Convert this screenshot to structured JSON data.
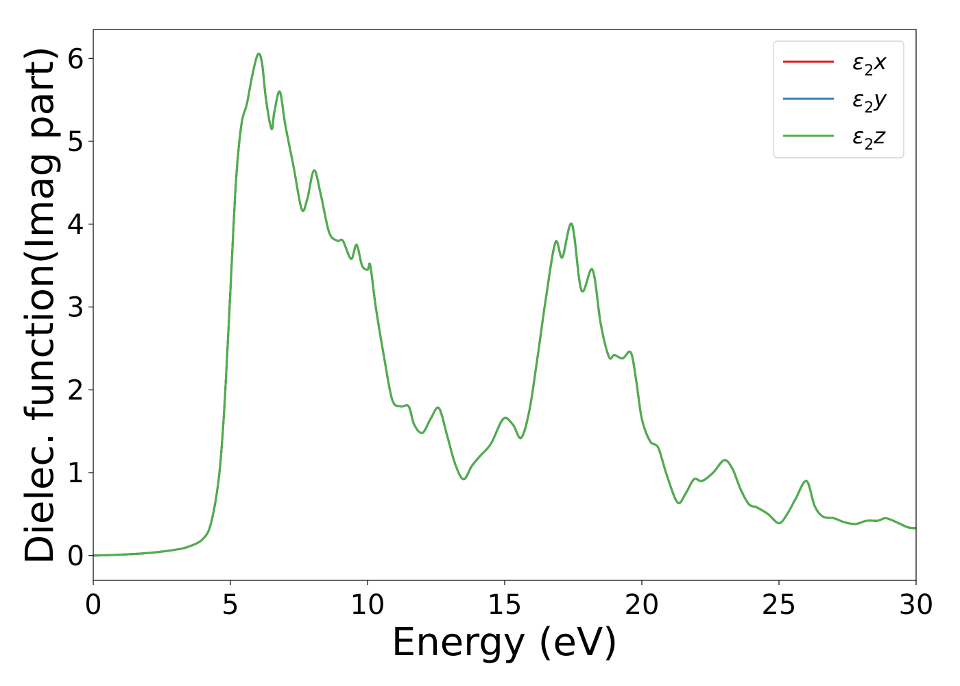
{
  "chart_data": {
    "type": "line",
    "xlabel": "Energy (eV)",
    "ylabel": "Dielec. function(Imag part)",
    "xlim": [
      0,
      30
    ],
    "ylim": [
      -0.3,
      6.35
    ],
    "xticks": [
      0,
      5,
      10,
      15,
      20,
      25,
      30
    ],
    "yticks": [
      0,
      1,
      2,
      3,
      4,
      5,
      6
    ],
    "grid": false,
    "legend_position": "top-right",
    "series": [
      {
        "name": "ε₂x",
        "legend": {
          "base": "ε",
          "sub": "2",
          "suffix": "x"
        },
        "color": "#e41a1c",
        "x": [
          0,
          1,
          2,
          3,
          3.5,
          4,
          4.3,
          4.6,
          4.8,
          5.0,
          5.2,
          5.4,
          5.6,
          5.8,
          6.0,
          6.15,
          6.3,
          6.5,
          6.6,
          6.8,
          7.0,
          7.3,
          7.6,
          7.8,
          8.05,
          8.3,
          8.6,
          8.9,
          9.1,
          9.4,
          9.6,
          9.8,
          10.0,
          10.1,
          10.3,
          10.6,
          10.9,
          11.2,
          11.5,
          11.7,
          12.0,
          12.3,
          12.6,
          12.9,
          13.2,
          13.5,
          13.8,
          14.1,
          14.5,
          14.95,
          15.3,
          15.6,
          15.9,
          16.2,
          16.5,
          16.85,
          17.1,
          17.45,
          17.8,
          18.2,
          18.5,
          18.8,
          19.0,
          19.3,
          19.6,
          19.8,
          20.0,
          20.3,
          20.6,
          20.9,
          21.3,
          21.6,
          21.9,
          22.2,
          22.6,
          23.0,
          23.3,
          23.6,
          23.9,
          24.2,
          24.6,
          25.0,
          25.3,
          25.6,
          26.0,
          26.3,
          26.6,
          27.0,
          27.4,
          27.8,
          28.2,
          28.6,
          28.9,
          29.3,
          29.7,
          30.0
        ],
        "y": [
          0.0,
          0.01,
          0.03,
          0.07,
          0.11,
          0.2,
          0.4,
          1.0,
          1.9,
          3.2,
          4.5,
          5.2,
          5.45,
          5.8,
          6.05,
          5.95,
          5.5,
          5.15,
          5.35,
          5.6,
          5.2,
          4.7,
          4.18,
          4.3,
          4.65,
          4.35,
          3.9,
          3.8,
          3.8,
          3.58,
          3.75,
          3.5,
          3.45,
          3.5,
          3.0,
          2.4,
          1.88,
          1.8,
          1.8,
          1.58,
          1.48,
          1.65,
          1.78,
          1.45,
          1.1,
          0.92,
          1.08,
          1.2,
          1.35,
          1.65,
          1.58,
          1.42,
          1.75,
          2.4,
          3.1,
          3.78,
          3.6,
          4.0,
          3.2,
          3.45,
          2.8,
          2.4,
          2.42,
          2.38,
          2.45,
          2.1,
          1.65,
          1.38,
          1.3,
          0.98,
          0.64,
          0.75,
          0.92,
          0.9,
          1.0,
          1.15,
          1.05,
          0.8,
          0.62,
          0.58,
          0.5,
          0.39,
          0.5,
          0.68,
          0.9,
          0.6,
          0.47,
          0.45,
          0.4,
          0.38,
          0.42,
          0.42,
          0.45,
          0.4,
          0.34,
          0.33
        ]
      },
      {
        "name": "ε₂y",
        "legend": {
          "base": "ε",
          "sub": "2",
          "suffix": "y"
        },
        "color": "#377eb8",
        "x": [
          0,
          1,
          2,
          3,
          3.5,
          4,
          4.3,
          4.6,
          4.8,
          5.0,
          5.2,
          5.4,
          5.6,
          5.8,
          6.0,
          6.15,
          6.3,
          6.5,
          6.6,
          6.8,
          7.0,
          7.3,
          7.6,
          7.8,
          8.05,
          8.3,
          8.6,
          8.9,
          9.1,
          9.4,
          9.6,
          9.8,
          10.0,
          10.1,
          10.3,
          10.6,
          10.9,
          11.2,
          11.5,
          11.7,
          12.0,
          12.3,
          12.6,
          12.9,
          13.2,
          13.5,
          13.8,
          14.1,
          14.5,
          14.95,
          15.3,
          15.6,
          15.9,
          16.2,
          16.5,
          16.85,
          17.1,
          17.45,
          17.8,
          18.2,
          18.5,
          18.8,
          19.0,
          19.3,
          19.6,
          19.8,
          20.0,
          20.3,
          20.6,
          20.9,
          21.3,
          21.6,
          21.9,
          22.2,
          22.6,
          23.0,
          23.3,
          23.6,
          23.9,
          24.2,
          24.6,
          25.0,
          25.3,
          25.6,
          26.0,
          26.3,
          26.6,
          27.0,
          27.4,
          27.8,
          28.2,
          28.6,
          28.9,
          29.3,
          29.7,
          30.0
        ],
        "y": [
          0.0,
          0.01,
          0.03,
          0.07,
          0.11,
          0.2,
          0.4,
          1.0,
          1.9,
          3.2,
          4.5,
          5.2,
          5.45,
          5.8,
          6.05,
          5.95,
          5.5,
          5.15,
          5.35,
          5.6,
          5.2,
          4.7,
          4.18,
          4.3,
          4.65,
          4.35,
          3.9,
          3.8,
          3.8,
          3.58,
          3.75,
          3.5,
          3.45,
          3.5,
          3.0,
          2.4,
          1.88,
          1.8,
          1.8,
          1.58,
          1.48,
          1.65,
          1.78,
          1.45,
          1.1,
          0.92,
          1.08,
          1.2,
          1.35,
          1.65,
          1.58,
          1.42,
          1.75,
          2.4,
          3.1,
          3.78,
          3.6,
          4.0,
          3.2,
          3.45,
          2.8,
          2.4,
          2.42,
          2.38,
          2.45,
          2.1,
          1.65,
          1.38,
          1.3,
          0.98,
          0.64,
          0.75,
          0.92,
          0.9,
          1.0,
          1.15,
          1.05,
          0.8,
          0.62,
          0.58,
          0.5,
          0.39,
          0.5,
          0.68,
          0.9,
          0.6,
          0.47,
          0.45,
          0.4,
          0.38,
          0.42,
          0.42,
          0.45,
          0.4,
          0.34,
          0.33
        ]
      },
      {
        "name": "ε₂z",
        "legend": {
          "base": "ε",
          "sub": "2",
          "suffix": "z"
        },
        "color": "#4daf4a",
        "x": [
          0,
          1,
          2,
          3,
          3.5,
          4,
          4.3,
          4.6,
          4.8,
          5.0,
          5.2,
          5.4,
          5.6,
          5.8,
          6.0,
          6.15,
          6.3,
          6.5,
          6.6,
          6.8,
          7.0,
          7.3,
          7.6,
          7.8,
          8.05,
          8.3,
          8.6,
          8.9,
          9.1,
          9.4,
          9.6,
          9.8,
          10.0,
          10.1,
          10.3,
          10.6,
          10.9,
          11.2,
          11.5,
          11.7,
          12.0,
          12.3,
          12.6,
          12.9,
          13.2,
          13.5,
          13.8,
          14.1,
          14.5,
          14.95,
          15.3,
          15.6,
          15.9,
          16.2,
          16.5,
          16.85,
          17.1,
          17.45,
          17.8,
          18.2,
          18.5,
          18.8,
          19.0,
          19.3,
          19.6,
          19.8,
          20.0,
          20.3,
          20.6,
          20.9,
          21.3,
          21.6,
          21.9,
          22.2,
          22.6,
          23.0,
          23.3,
          23.6,
          23.9,
          24.2,
          24.6,
          25.0,
          25.3,
          25.6,
          26.0,
          26.3,
          26.6,
          27.0,
          27.4,
          27.8,
          28.2,
          28.6,
          28.9,
          29.3,
          29.7,
          30.0
        ],
        "y": [
          0.0,
          0.01,
          0.03,
          0.07,
          0.11,
          0.2,
          0.4,
          1.0,
          1.9,
          3.2,
          4.5,
          5.2,
          5.45,
          5.8,
          6.05,
          5.95,
          5.5,
          5.15,
          5.35,
          5.6,
          5.2,
          4.7,
          4.18,
          4.3,
          4.65,
          4.35,
          3.9,
          3.8,
          3.8,
          3.58,
          3.75,
          3.5,
          3.45,
          3.5,
          3.0,
          2.4,
          1.88,
          1.8,
          1.8,
          1.58,
          1.48,
          1.65,
          1.78,
          1.45,
          1.1,
          0.92,
          1.08,
          1.2,
          1.35,
          1.65,
          1.58,
          1.42,
          1.75,
          2.4,
          3.1,
          3.78,
          3.6,
          4.0,
          3.2,
          3.45,
          2.8,
          2.4,
          2.42,
          2.38,
          2.45,
          2.1,
          1.65,
          1.38,
          1.3,
          0.98,
          0.64,
          0.75,
          0.92,
          0.9,
          1.0,
          1.15,
          1.05,
          0.8,
          0.62,
          0.58,
          0.5,
          0.39,
          0.5,
          0.68,
          0.9,
          0.6,
          0.47,
          0.45,
          0.4,
          0.38,
          0.42,
          0.42,
          0.45,
          0.4,
          0.34,
          0.33
        ]
      }
    ]
  }
}
